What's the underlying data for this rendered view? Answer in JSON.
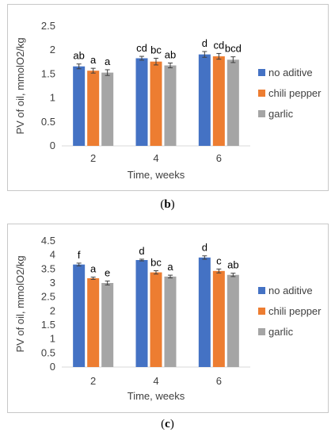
{
  "captions": {
    "b_open": "(",
    "b_letter": "b",
    "b_close": ")",
    "c_open": "(",
    "c_letter": "c",
    "c_close": ")"
  },
  "colors": {
    "no_aditive": "#4472C4",
    "chili_pepper": "#ED7D31",
    "garlic": "#A5A5A5",
    "error_bar": "#404040",
    "axis": "#d9d9d9"
  },
  "chart_data": [
    {
      "type": "bar",
      "panel": "b",
      "categories": [
        "2",
        "4",
        "6"
      ],
      "xlabel": "Time, weeks",
      "ylabel": "PV of oil, mmolO2/kg",
      "ylim": [
        0,
        2.5
      ],
      "yticks": [
        "0",
        "0.5",
        "1",
        "1.5",
        "2",
        "2.5"
      ],
      "legend_position": "right",
      "series": [
        {
          "name": "no aditive",
          "values": [
            1.66,
            1.83,
            1.91
          ],
          "errors": [
            0.05,
            0.04,
            0.06
          ],
          "labels": [
            "ab",
            "cd",
            "d"
          ]
        },
        {
          "name": "chili pepper",
          "values": [
            1.57,
            1.76,
            1.87
          ],
          "errors": [
            0.05,
            0.07,
            0.06
          ],
          "labels": [
            "a",
            "bc",
            "cd"
          ]
        },
        {
          "name": "garlic",
          "values": [
            1.53,
            1.68,
            1.8
          ],
          "errors": [
            0.06,
            0.05,
            0.06
          ],
          "labels": [
            "a",
            "ab",
            "bcd"
          ]
        }
      ]
    },
    {
      "type": "bar",
      "panel": "c",
      "categories": [
        "2",
        "4",
        "6"
      ],
      "xlabel": "Time, weeks",
      "ylabel": "PV of oil, mmolO2/kg",
      "ylim": [
        0,
        4.5
      ],
      "yticks": [
        "0",
        "0.5",
        "1",
        "1.5",
        "2",
        "2.5",
        "3",
        "3.5",
        "4",
        "4.5"
      ],
      "legend_position": "right",
      "series": [
        {
          "name": "no aditive",
          "values": [
            3.66,
            3.82,
            3.91
          ],
          "errors": [
            0.05,
            0.03,
            0.06
          ],
          "labels": [
            "f",
            "d",
            "d"
          ]
        },
        {
          "name": "chili pepper",
          "values": [
            3.17,
            3.38,
            3.43
          ],
          "errors": [
            0.04,
            0.06,
            0.07
          ],
          "labels": [
            "a",
            "bc",
            "c"
          ]
        },
        {
          "name": "garlic",
          "values": [
            3.0,
            3.23,
            3.29
          ],
          "errors": [
            0.07,
            0.05,
            0.06
          ],
          "labels": [
            "e",
            "a",
            "ab"
          ]
        }
      ]
    }
  ]
}
